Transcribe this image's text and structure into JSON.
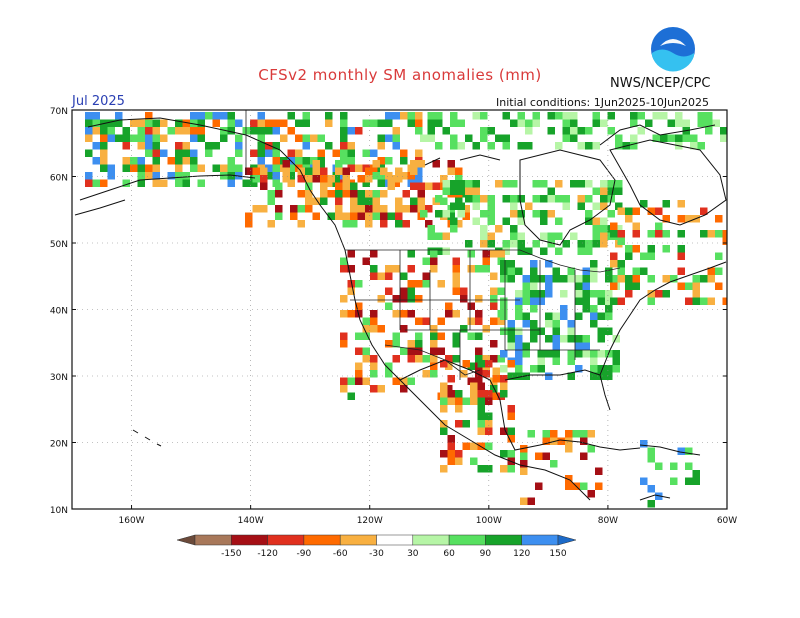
{
  "header": {
    "title": "CFSv2 monthly SM anomalies (mm)",
    "valid_month": "Jul 2025",
    "initial_conditions": "Initial conditions: 1Jun2025-10Jun2025",
    "organization": "NWS/NCEP/CPC",
    "logo_text": "NOAA"
  },
  "map": {
    "lat_labels": [
      "70N",
      "60N",
      "50N",
      "40N",
      "30N",
      "20N",
      "10N"
    ],
    "lon_labels": [
      "160W",
      "140W",
      "120W",
      "100W",
      "80W",
      "60W"
    ],
    "lat_values": [
      70,
      60,
      50,
      40,
      30,
      20,
      10
    ],
    "lon_values": [
      -160,
      -140,
      -120,
      -100,
      -80,
      -60
    ],
    "extent": {
      "lon_min": -170,
      "lon_max": -60,
      "lat_min": 10,
      "lat_max": 70
    }
  },
  "colorbar": {
    "labels": [
      "-150",
      "-120",
      "-90",
      "-60",
      "-30",
      "30",
      "60",
      "90",
      "120",
      "150"
    ],
    "colors": [
      "#6b4a3a",
      "#a8785a",
      "#a50f15",
      "#e0301e",
      "#ff6a00",
      "#f8b041",
      "#ffffff",
      "#b6f5a6",
      "#57e060",
      "#17a32a",
      "#3d8ff0",
      "#1c6ac8"
    ]
  }
}
